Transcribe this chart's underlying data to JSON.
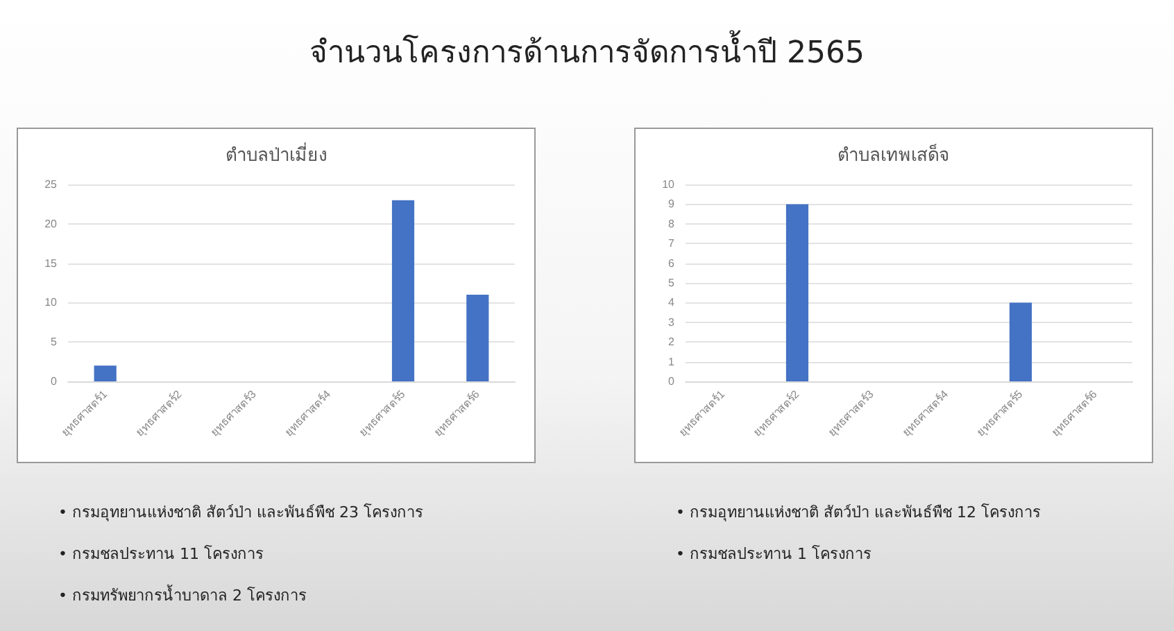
{
  "chart_data": [
    {
      "type": "other",
      "title": "จำนวนโครงการด้านการจัดการน้ำปี 2565"
    },
    {
      "type": "bar",
      "title": "ตำบลป่าเมี่ยง",
      "categories": [
        "ยุทธศาสตร์1",
        "ยุทธศาสตร์2",
        "ยุทธศาสตร์3",
        "ยุทธศาสตร์4",
        "ยุทธศาสตร์5",
        "ยุทธศาสตร์6"
      ],
      "values": [
        2,
        0,
        0,
        0,
        23,
        11
      ],
      "color": "#4472c4",
      "ylim": [
        0,
        25
      ],
      "yticks": [
        0,
        5,
        10,
        15,
        20,
        25
      ],
      "grid": "y",
      "annotations": [
        "• กรมอุทยานแห่งชาติ สัตว์ป่า และพันธ์พืช 23 โครงการ",
        "• กรมชลประทาน 11 โครงการ",
        "• กรมทรัพยากรน้ำบาดาล 2 โครงการ"
      ]
    },
    {
      "type": "bar",
      "title": "ตำบลเทพเสด็จ",
      "categories": [
        "ยุทธศาสตร์1",
        "ยุทธศาสตร์2",
        "ยุทธศาสตร์3",
        "ยุทธศาสตร์4",
        "ยุทธศาสตร์5",
        "ยุทธศาสตร์6"
      ],
      "values": [
        0,
        9,
        0,
        0,
        4,
        0
      ],
      "color": "#4472c4",
      "ylim": [
        0,
        10
      ],
      "yticks": [
        0,
        1,
        2,
        3,
        4,
        5,
        6,
        7,
        8,
        9,
        10
      ],
      "grid": "y",
      "annotations": [
        "• กรมอุทยานแห่งชาติ สัตว์ป่า และพันธ์พืช 12 โครงการ",
        "• กรมชลประทาน 1 โครงการ"
      ]
    }
  ]
}
